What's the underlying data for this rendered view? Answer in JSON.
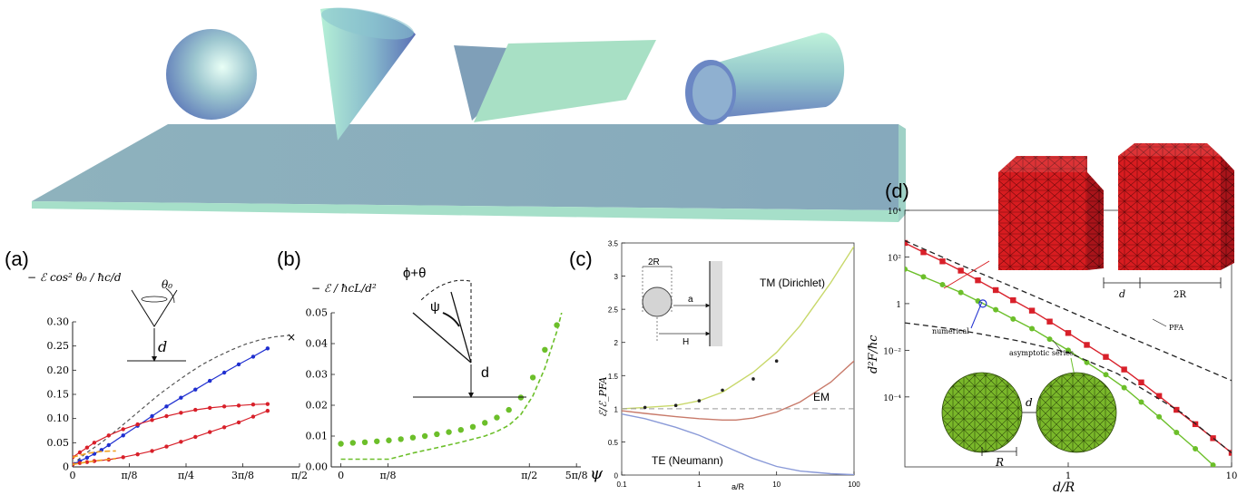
{
  "colors": {
    "plate_top": "#8fb1bf",
    "plate_edge": "#a8d8c8",
    "blue_series": "#1f2fd0",
    "red_series": "#d8202a",
    "green_series": "#6cbf2a",
    "dashed_gray": "#555555",
    "tm_curve": "#c8d86a",
    "em_curve": "#c87a6a",
    "te_curve": "#8a9ad8",
    "mesh_red": "#d81c20",
    "mesh_green": "#7ab82a"
  },
  "chart_data": [
    {
      "type": "line",
      "panel_label": "(a)",
      "ylabel": "− ℰ cos² θ₀ / ħc/d",
      "xticks": [
        "0",
        "π/8",
        "π/4",
        "3π/8",
        "π/2"
      ],
      "yticks": [
        "0",
        "0.05",
        "0.10",
        "0.15",
        "0.20",
        "0.25",
        "0.30"
      ],
      "xlim": [
        0,
        1.5708
      ],
      "ylim": [
        0,
        0.3
      ],
      "inset_labels": {
        "theta": "θ₀",
        "d": "d"
      },
      "end_marker": "×",
      "series": [
        {
          "style": "dashed-gray",
          "x": [
            0,
            0.05,
            0.1,
            0.2,
            0.3,
            0.4,
            0.5,
            0.6,
            0.7,
            0.8,
            0.9,
            1.0,
            1.1,
            1.2,
            1.3,
            1.4,
            1.5
          ],
          "y": [
            0.005,
            0.018,
            0.03,
            0.05,
            0.075,
            0.1,
            0.125,
            0.15,
            0.172,
            0.193,
            0.212,
            0.228,
            0.242,
            0.254,
            0.263,
            0.269,
            0.272
          ]
        },
        {
          "style": "blue",
          "x": [
            0,
            0.05,
            0.1,
            0.15,
            0.2,
            0.25,
            0.35,
            0.45,
            0.55,
            0.65,
            0.75,
            0.85,
            0.95,
            1.05,
            1.15,
            1.25,
            1.35
          ],
          "y": [
            0.005,
            0.012,
            0.019,
            0.027,
            0.035,
            0.045,
            0.065,
            0.085,
            0.105,
            0.125,
            0.143,
            0.16,
            0.178,
            0.195,
            0.212,
            0.228,
            0.245
          ]
        },
        {
          "style": "red",
          "x": [
            0,
            0.05,
            0.1,
            0.15,
            0.25,
            0.35,
            0.45,
            0.55,
            0.65,
            0.75,
            0.85,
            0.95,
            1.05,
            1.15,
            1.25,
            1.35
          ],
          "y": [
            0.02,
            0.03,
            0.04,
            0.05,
            0.065,
            0.078,
            0.088,
            0.097,
            0.105,
            0.112,
            0.118,
            0.122,
            0.125,
            0.127,
            0.129,
            0.13
          ]
        },
        {
          "style": "red",
          "x": [
            0,
            0.05,
            0.1,
            0.15,
            0.25,
            0.35,
            0.45,
            0.55,
            0.65,
            0.75,
            0.85,
            0.95,
            1.05,
            1.15,
            1.25,
            1.35
          ],
          "y": [
            0.005,
            0.008,
            0.01,
            0.012,
            0.015,
            0.02,
            0.026,
            0.033,
            0.042,
            0.052,
            0.062,
            0.072,
            0.082,
            0.092,
            0.104,
            0.116
          ]
        },
        {
          "style": "orange-dashed",
          "x": [
            0,
            0.1,
            0.2,
            0.3
          ],
          "y": [
            0.02,
            0.028,
            0.032,
            0.033
          ]
        },
        {
          "style": "orange-dashed",
          "x": [
            0,
            0.1,
            0.2,
            0.3
          ],
          "y": [
            0.005,
            0.01,
            0.014,
            0.017
          ]
        }
      ]
    },
    {
      "type": "scatter",
      "panel_label": "(b)",
      "ylabel": "− ℰ / ħcL/d²",
      "xlabel": "ψ",
      "xticks": [
        "0",
        "π/8",
        "π/2",
        "5π/8"
      ],
      "yticks": [
        "0.00",
        "0.01",
        "0.02",
        "0.03",
        "0.04",
        "0.05"
      ],
      "xlim": [
        -0.08,
        2.0
      ],
      "ylim": [
        0,
        0.05
      ],
      "inset_labels": {
        "angle": "ϕ+θ",
        "psi": "ψ",
        "d": "d"
      },
      "series": [
        {
          "style": "green-dots",
          "x": [
            0,
            0.1,
            0.2,
            0.3,
            0.4,
            0.5,
            0.6,
            0.7,
            0.8,
            0.9,
            1.0,
            1.1,
            1.2,
            1.3,
            1.4,
            1.5,
            1.6,
            1.7,
            1.8
          ],
          "y": [
            0.0075,
            0.0078,
            0.008,
            0.0083,
            0.0086,
            0.009,
            0.0095,
            0.01,
            0.0106,
            0.0113,
            0.012,
            0.013,
            0.0143,
            0.016,
            0.0185,
            0.0225,
            0.029,
            0.038,
            0.046
          ]
        },
        {
          "style": "green-dashed",
          "x": [
            0,
            0.4,
            0.6,
            0.8,
            1.0,
            1.2,
            1.3,
            1.4,
            1.5,
            1.6,
            1.7,
            1.8,
            1.84
          ],
          "y": [
            0.0025,
            0.0025,
            0.0045,
            0.0062,
            0.008,
            0.01,
            0.0115,
            0.0135,
            0.017,
            0.023,
            0.032,
            0.044,
            0.05
          ]
        }
      ]
    },
    {
      "type": "line",
      "panel_label": "(c)",
      "ylabel": "ℰ/ℰ_PFA",
      "xlabel": "a/R",
      "xticks": [
        "0.1",
        "1",
        "10",
        "100"
      ],
      "yticks": [
        "0",
        "0.5",
        "1",
        "1.5",
        "2",
        "2.5",
        "3",
        "3.5"
      ],
      "xscale": "log",
      "xlim": [
        0.1,
        100
      ],
      "ylim": [
        0,
        3.5
      ],
      "inset_labels": {
        "diameter": "2R",
        "a": "a",
        "H": "H"
      },
      "series": [
        {
          "name": "TM (Dirichlet)",
          "style": "tm",
          "x": [
            0.1,
            0.2,
            0.5,
            1,
            2,
            5,
            10,
            20,
            50,
            100
          ],
          "y": [
            1.0,
            1.02,
            1.05,
            1.12,
            1.25,
            1.55,
            1.85,
            2.25,
            2.9,
            3.45
          ]
        },
        {
          "name": "EM",
          "style": "em",
          "x": [
            0.1,
            0.2,
            0.5,
            1,
            2,
            3,
            5,
            10,
            20,
            50,
            100
          ],
          "y": [
            0.97,
            0.93,
            0.88,
            0.85,
            0.83,
            0.83,
            0.86,
            0.95,
            1.1,
            1.4,
            1.72
          ]
        },
        {
          "name": "TE (Neumann)",
          "style": "te",
          "x": [
            0.1,
            0.2,
            0.5,
            1,
            2,
            5,
            10,
            20,
            50,
            100
          ],
          "y": [
            0.92,
            0.85,
            0.72,
            0.6,
            0.45,
            0.25,
            0.13,
            0.06,
            0.02,
            0.005
          ]
        },
        {
          "style": "reference-dashed",
          "x": [
            0.1,
            100
          ],
          "y": [
            1,
            1
          ]
        },
        {
          "style": "data-points",
          "x": [
            0.2,
            0.5,
            1,
            2,
            5,
            10
          ],
          "y": [
            1.02,
            1.05,
            1.12,
            1.28,
            1.45,
            1.72
          ]
        }
      ]
    },
    {
      "type": "line",
      "panel_label": "(d)",
      "ylabel": "d²F/ħc",
      "xlabel": "d/R",
      "xticks": [
        "1",
        "10"
      ],
      "yticks": [
        "10⁴",
        "10²",
        "1",
        "10⁻²",
        "10⁻⁴"
      ],
      "xscale": "log",
      "yscale": "log",
      "xlim": [
        0.1,
        10
      ],
      "ylim": [
        1e-07,
        10000.0
      ],
      "annotations": [
        "numerical",
        "asymptotic series",
        "PFA"
      ],
      "inset_labels": {
        "cube_gap": "d",
        "cube_size": "2R",
        "sphere_gap": "d",
        "sphere_radius": "R"
      },
      "series": [
        {
          "style": "red-markers",
          "x": [
            0.1,
            0.13,
            0.17,
            0.22,
            0.28,
            0.36,
            0.46,
            0.6,
            0.77,
            1.0,
            1.3,
            1.7,
            2.2,
            2.8,
            3.6,
            4.6,
            6.0,
            7.7,
            10
          ],
          "y": [
            400,
            160,
            65,
            26,
            10,
            3.8,
            1.4,
            0.5,
            0.17,
            0.055,
            0.017,
            0.0052,
            0.0015,
            0.00042,
            0.00011,
            2.8e-05,
            6.8e-06,
            1.7e-06,
            4e-07
          ]
        },
        {
          "style": "green-markers",
          "x": [
            0.1,
            0.13,
            0.17,
            0.22,
            0.28,
            0.36,
            0.46,
            0.6,
            0.77,
            1.0,
            1.3,
            1.7,
            2.2,
            2.8,
            3.6,
            4.6,
            6.0,
            7.7,
            10
          ],
          "y": [
            30,
            14,
            6.5,
            3,
            1.3,
            0.55,
            0.22,
            0.085,
            0.03,
            0.01,
            0.003,
            0.0009,
            0.00025,
            6e-05,
            1.4e-05,
            3e-06,
            6e-07,
            1.2e-07,
            2e-08
          ]
        },
        {
          "style": "pfa-dashed",
          "x": [
            0.1,
            0.2,
            0.5,
            1,
            2,
            5,
            10
          ],
          "y": [
            500,
            60,
            4,
            0.5,
            0.06,
            0.004,
            0.0005
          ]
        },
        {
          "style": "asymptotic-dashed",
          "x": [
            0.1,
            0.2,
            0.5,
            1,
            2,
            5,
            10
          ],
          "y": [
            0.15,
            0.08,
            0.025,
            0.008,
            0.001,
            2e-05,
            4e-07
          ]
        }
      ]
    }
  ]
}
